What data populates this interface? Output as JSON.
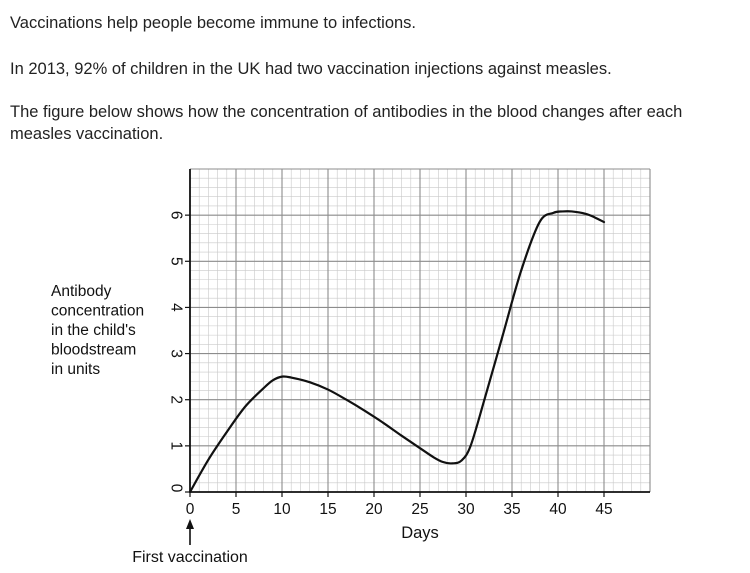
{
  "text": {
    "intro": "Vaccinations help people become immune to infections.",
    "stat": "In 2013, 92% of children in the UK had two vaccination injections against measles.",
    "figure_caption": "The figure below shows how the concentration of antibodies in the blood changes after each measles vaccination."
  },
  "chart_data": {
    "type": "line",
    "title": "",
    "xlabel": "Days",
    "ylabel_lines": [
      "Antibody",
      "concentration",
      "in the child's",
      "bloodstream",
      "in units"
    ],
    "xlim": [
      0,
      50
    ],
    "ylim": [
      0,
      7
    ],
    "x_ticks": [
      0,
      5,
      10,
      15,
      20,
      25,
      30,
      35,
      40,
      45
    ],
    "y_ticks": [
      0,
      1,
      2,
      3,
      4,
      5,
      6
    ],
    "x_tick_labels": [
      "0",
      "5",
      "10",
      "15",
      "20",
      "25",
      "30",
      "35",
      "40",
      "45"
    ],
    "y_tick_labels": [
      "0",
      "1",
      "2",
      "3",
      "4",
      "5",
      "6"
    ],
    "grid": true,
    "annotation": "First vaccination",
    "annotation_x": 0,
    "series": [
      {
        "color": "#111111",
        "x": [
          0,
          2,
          4,
          6,
          8,
          9,
          10,
          11,
          13,
          15,
          17,
          19,
          21,
          23,
          25,
          26.5,
          27.5,
          28.5,
          29.5,
          30.5,
          32,
          34,
          36,
          38,
          39.5,
          40.5,
          41.5,
          43,
          44,
          45
        ],
        "y": [
          0,
          0.7,
          1.3,
          1.85,
          2.25,
          2.42,
          2.5,
          2.48,
          2.38,
          2.22,
          2.0,
          1.76,
          1.5,
          1.22,
          0.95,
          0.75,
          0.65,
          0.62,
          0.68,
          1.0,
          2.0,
          3.4,
          4.8,
          5.85,
          6.05,
          6.08,
          6.08,
          6.03,
          5.95,
          5.85
        ]
      }
    ]
  }
}
